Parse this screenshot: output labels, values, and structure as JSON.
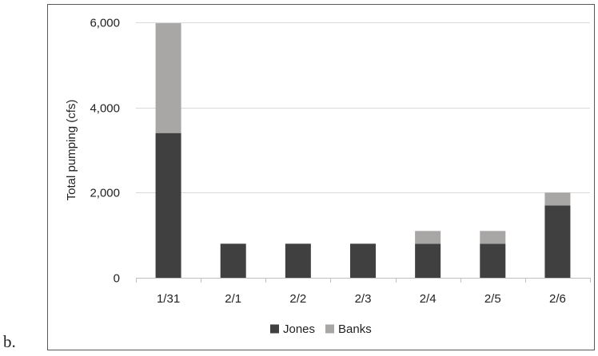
{
  "panel_label": "b.",
  "chart_data": {
    "type": "bar",
    "stacked": true,
    "title": "",
    "xlabel": "",
    "ylabel": "Total pumping (cfs)",
    "categories": [
      "1/31",
      "2/1",
      "2/2",
      "2/3",
      "2/4",
      "2/5",
      "2/6"
    ],
    "series": [
      {
        "name": "Jones",
        "color": "#404040",
        "values": [
          3400,
          800,
          800,
          800,
          800,
          800,
          1700
        ]
      },
      {
        "name": "Banks",
        "color": "#a9a6a6",
        "values": [
          2580,
          0,
          0,
          0,
          300,
          300,
          300
        ]
      }
    ],
    "ylim": [
      0,
      6000
    ],
    "yticks": [
      0,
      2000,
      4000,
      6000
    ],
    "ytick_labels": [
      "0",
      "2,000",
      "4,000",
      "6,000"
    ],
    "grid": true,
    "legend_position": "bottom"
  }
}
